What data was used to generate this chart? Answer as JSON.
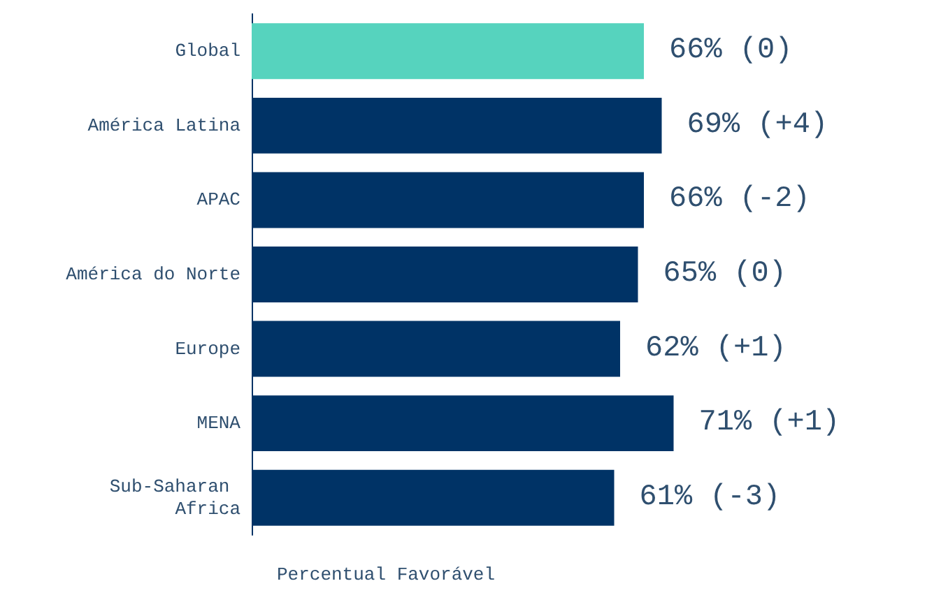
{
  "chart_data": {
    "type": "bar",
    "orientation": "horizontal",
    "xlabel": "Percentual Favorável",
    "categories": [
      "Global",
      "América Latina",
      "APAC",
      "América do Norte",
      "Europe",
      "MENA",
      "Sub-Saharan Africa"
    ],
    "values": [
      66,
      69,
      66,
      65,
      62,
      71,
      61
    ],
    "value_labels": [
      "66% (0)",
      "69% (+4)",
      "66% (-2)",
      "65% (0)",
      "62% (+1)",
      "71% (+1)",
      "61% (-3)"
    ],
    "colors": [
      "#56d3be",
      "#003366",
      "#003366",
      "#003366",
      "#003366",
      "#003366",
      "#003366"
    ]
  }
}
